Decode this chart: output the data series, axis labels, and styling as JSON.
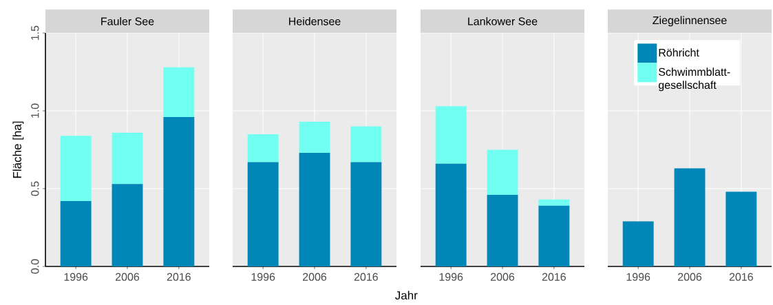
{
  "chart_data": [
    {
      "type": "bar",
      "title": "Fauler See",
      "ylabel": "Fläche [ha]",
      "stacked": true,
      "grid": true,
      "categories": [
        "1996",
        "2006",
        "2016"
      ],
      "series": [
        {
          "color": "#0087b8",
          "values": [
            0.42,
            0.53,
            0.96
          ]
        },
        {
          "color": "#70fff0",
          "values": [
            0.42,
            0.33,
            0.32
          ]
        }
      ],
      "ylim": [
        0,
        1.5
      ],
      "yticks": [
        {
          "value": 0,
          "label": "0.0"
        },
        {
          "value": 0.5,
          "label": "0.5"
        },
        {
          "value": 1,
          "label": "1.0"
        },
        {
          "value": 1.5,
          "label": "1.5"
        }
      ]
    },
    {
      "type": "bar",
      "title": "Heidensee",
      "xlabel": "Jahr",
      "stacked": true,
      "grid": true,
      "categories": [
        "1996",
        "2006",
        "2016"
      ],
      "series": [
        {
          "color": "#0087b8",
          "values": [
            0.67,
            0.73,
            0.67
          ]
        },
        {
          "color": "#70fff0",
          "values": [
            0.18,
            0.2,
            0.23
          ]
        }
      ],
      "ylim": [
        0,
        1.5
      ],
      "yticks": [
        {
          "value": 0,
          "label": null
        },
        {
          "value": 0.5,
          "label": null
        },
        {
          "value": 1,
          "label": null
        },
        {
          "value": 1.5,
          "label": null
        }
      ],
      "tick_labels": "x"
    },
    {
      "type": "bar",
      "title": "Lankower See",
      "stacked": true,
      "grid": true,
      "categories": [
        "1996",
        "2006",
        "2016"
      ],
      "series": [
        {
          "color": "#0087b8",
          "values": [
            0.66,
            0.46,
            0.39
          ]
        },
        {
          "color": "#70fff0",
          "values": [
            0.37,
            0.29,
            0.04
          ]
        }
      ],
      "ylim": [
        0,
        1.5
      ],
      "yticks": [
        {
          "value": 0,
          "label": null
        },
        {
          "value": 0.5,
          "label": null
        },
        {
          "value": 1,
          "label": null
        },
        {
          "value": 1.5,
          "label": null
        }
      ],
      "tick_labels": "x"
    },
    {
      "type": "bar",
      "title": "Ziegelinnensee",
      "stacked": true,
      "grid": true,
      "legend": "top right",
      "categories": [
        "1996",
        "2006",
        "2016"
      ],
      "series": [
        {
          "name": "Röhricht",
          "color": "#0087b8",
          "values": [
            0.29,
            0.63,
            0.48
          ]
        },
        {
          "name": "Schwimmblatt-gesellschaft",
          "color": "#70fff0",
          "values": [
            0,
            0,
            0
          ]
        }
      ],
      "ylim": [
        0,
        1.5
      ],
      "yticks": [
        {
          "value": 0,
          "label": null
        },
        {
          "value": 0.5,
          "label": null
        },
        {
          "value": 1,
          "label": null
        },
        {
          "value": 1.5,
          "label": null
        }
      ],
      "tick_labels": "x"
    }
  ]
}
